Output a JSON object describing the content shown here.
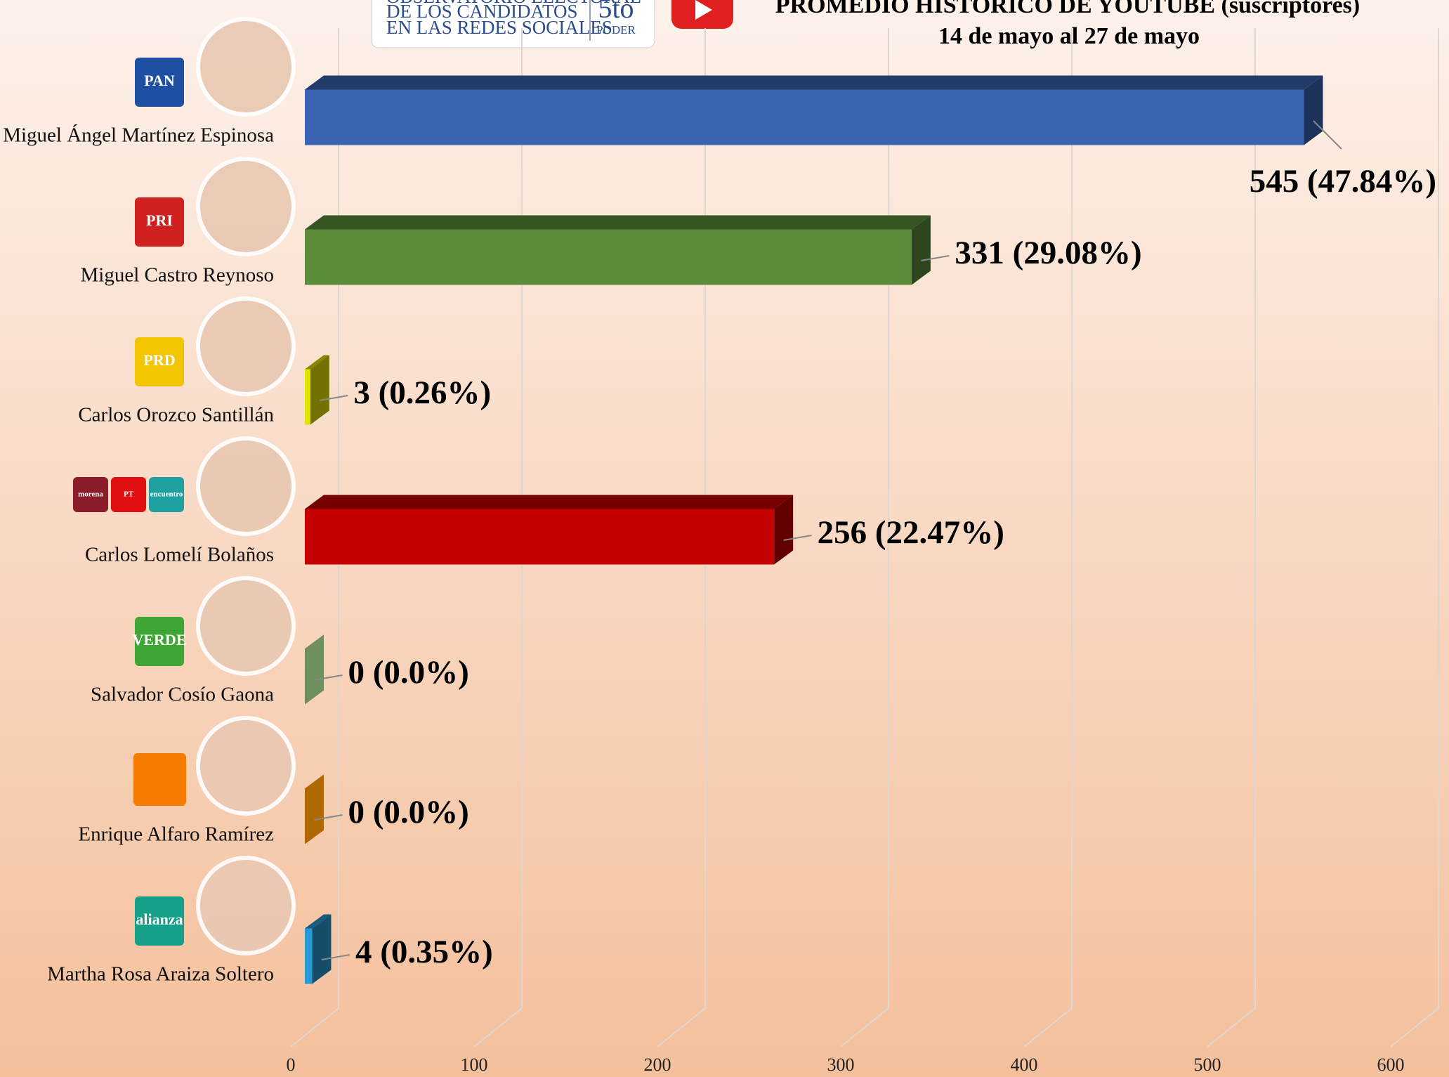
{
  "logo": {
    "lines": [
      "OBSERVATORIO ELECTORAL",
      "DE LOS CANDIDATOS",
      "EN LAS REDES SOCIALES"
    ],
    "brand": "5to",
    "brand_sub": "PODER"
  },
  "party_logos": [
    [
      "PAN"
    ],
    [
      "PRI"
    ],
    [
      "PRD"
    ],
    [
      "morena",
      "PT",
      "encuentro"
    ],
    [
      "VERDE"
    ],
    [],
    [
      "alianza"
    ]
  ],
  "chart_data": {
    "type": "bar3d_horizontal",
    "title": "PROMEDIO HISTORICO DE YOUTUBE (suscriptores)",
    "subtitle": "14 de mayo al 27 de mayo",
    "categories": [
      "Miguel Ángel Martínez Espinosa",
      "Miguel Castro Reynoso",
      "Carlos Orozco Santillán",
      "Carlos Lomelí Bolaños",
      "Salvador Cosío Gaona",
      "Enrique Alfaro Ramírez",
      "Martha Rosa Araiza Soltero"
    ],
    "values": [
      545,
      331,
      3,
      256,
      0,
      0,
      4
    ],
    "value_labels": [
      "545 (47.84%)",
      "331 (29.08%)",
      "3 (0.26%)",
      "256 (22.47%)",
      "0 (0.0%)",
      "0 (0.0%)",
      "4 (0.35%)"
    ],
    "colors": [
      "#3a63b2",
      "#5b8c3a",
      "#e3e300",
      "#c40000",
      "#6f8f5f",
      "#b06800",
      "#2a9ad6"
    ],
    "xlim": [
      0,
      600
    ],
    "xticks": [
      0,
      100,
      200,
      300,
      400,
      500,
      600
    ],
    "grid": true
  }
}
